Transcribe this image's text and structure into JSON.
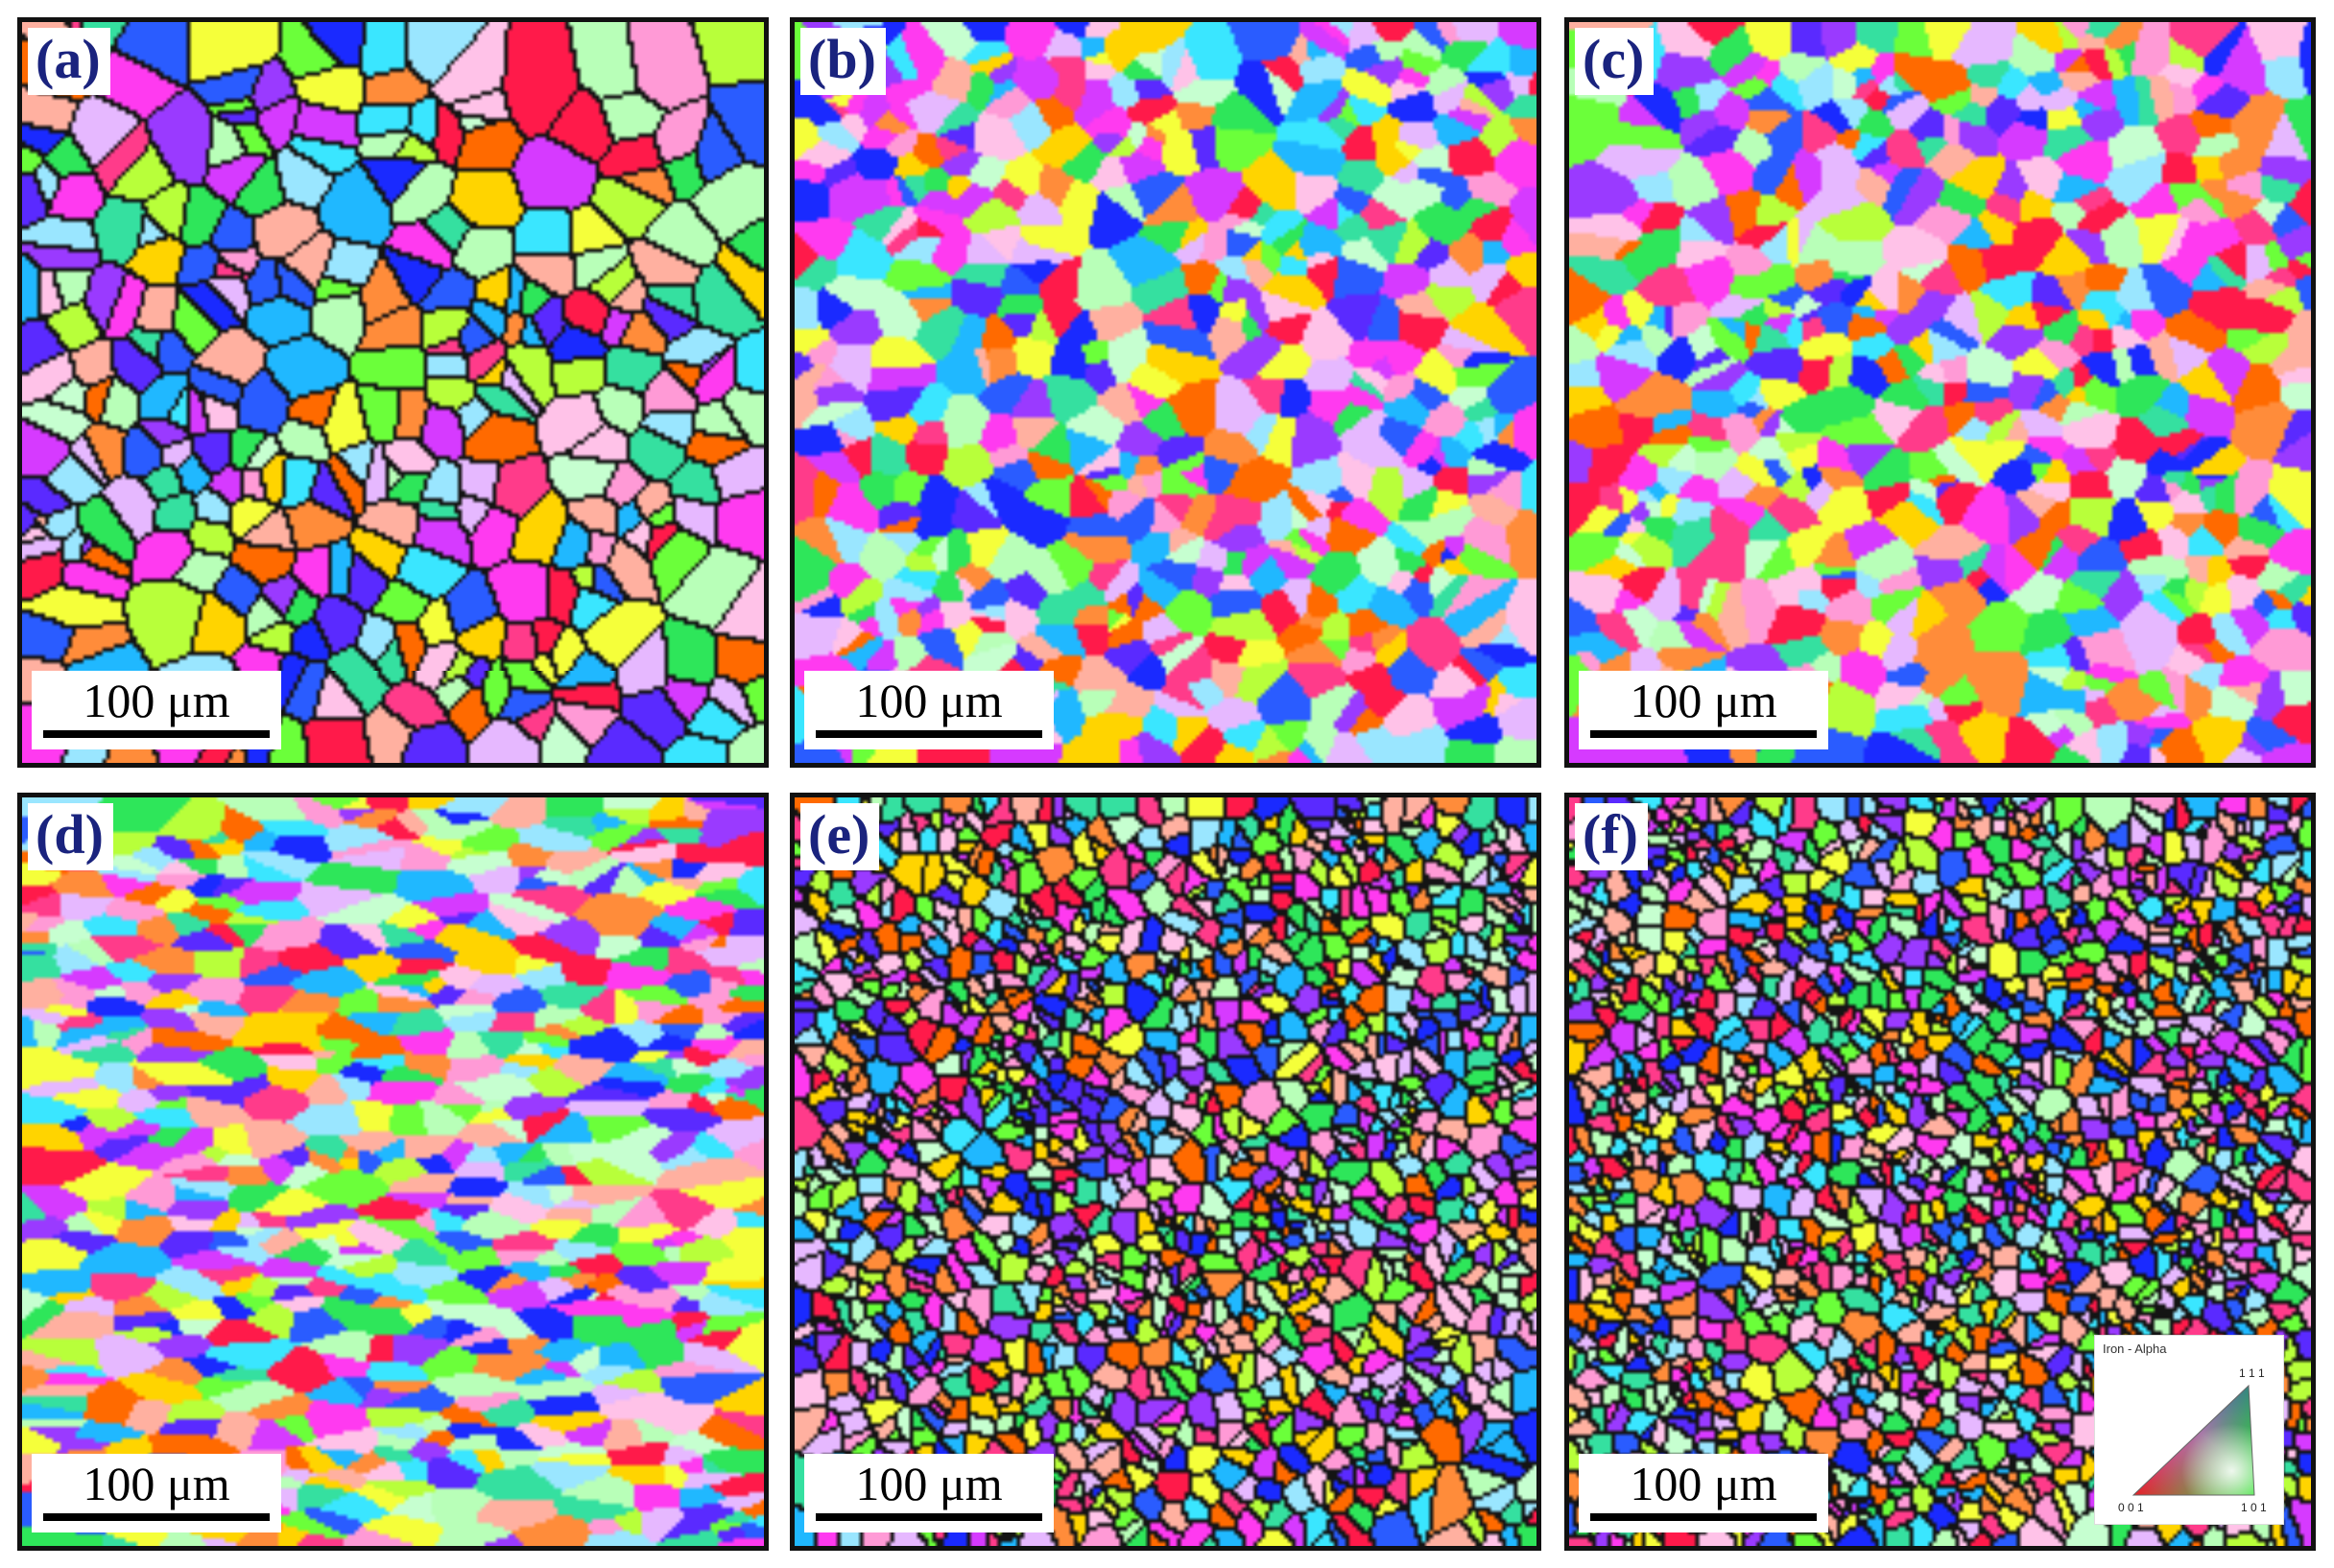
{
  "figure": {
    "panels": [
      {
        "label": "(a)",
        "scale_bar": "100 μm"
      },
      {
        "label": "(b)",
        "scale_bar": "100 μm"
      },
      {
        "label": "(c)",
        "scale_bar": "100 μm"
      },
      {
        "label": "(d)",
        "scale_bar": "100 μm"
      },
      {
        "label": "(e)",
        "scale_bar": "100 μm"
      },
      {
        "label": "(f)",
        "scale_bar": "100 μm"
      }
    ],
    "legend": {
      "title": "Iron - Alpha",
      "corner_111": "1 1 1",
      "corner_001": "0 0 1",
      "corner_101": "1 0 1"
    }
  },
  "colors": {
    "border": "#111111",
    "label": "#1a237e",
    "grain_boundary": "#000000"
  }
}
